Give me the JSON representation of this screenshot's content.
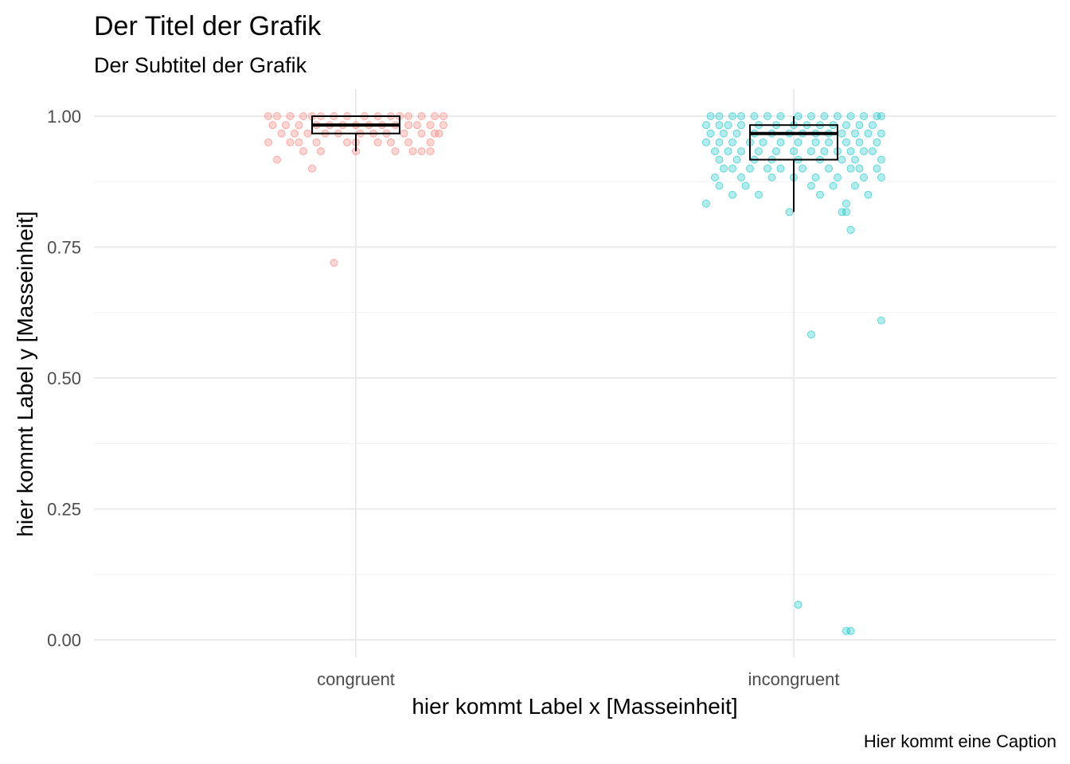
{
  "chart_data": {
    "type": "boxplot+jitter",
    "title": "Der Titel der Grafik",
    "subtitle": "Der Subtitel der Grafik",
    "xlabel": "hier kommt Label x [Masseinheit]",
    "ylabel": "hier kommt Label y [Masseinheit]",
    "caption": "Hier kommt eine Caption",
    "ylim": [
      0,
      1.05
    ],
    "yticks": [
      "0.00",
      "0.25",
      "0.50",
      "0.75",
      "1.00"
    ],
    "ytick_values": [
      0,
      0.25,
      0.5,
      0.75,
      1.0
    ],
    "grid": true,
    "legend": "none",
    "categories": [
      "congruent",
      "incongruent"
    ],
    "colors": {
      "congruent": "#F8766D",
      "incongruent": "#00BFC4"
    },
    "boxes": [
      {
        "category": "congruent",
        "whisker_low": 0.933,
        "q1": 0.967,
        "median": 0.983,
        "q3": 1.0,
        "whisker_high": 1.0
      },
      {
        "category": "incongruent",
        "whisker_low": 0.817,
        "q1": 0.917,
        "median": 0.967,
        "q3": 0.983,
        "whisker_high": 1.0
      }
    ],
    "points": {
      "congruent": [
        [
          -0.2,
          1.0
        ],
        [
          -0.18,
          1.0
        ],
        [
          -0.15,
          1.0
        ],
        [
          -0.12,
          1.0
        ],
        [
          -0.1,
          1.0
        ],
        [
          -0.08,
          1.0
        ],
        [
          -0.05,
          1.0
        ],
        [
          -0.02,
          1.0
        ],
        [
          0.02,
          1.0
        ],
        [
          0.05,
          1.0
        ],
        [
          0.08,
          1.0
        ],
        [
          0.1,
          1.0
        ],
        [
          0.12,
          1.0
        ],
        [
          0.15,
          1.0
        ],
        [
          0.18,
          1.0
        ],
        [
          0.2,
          1.0
        ],
        [
          -0.19,
          0.983
        ],
        [
          -0.16,
          0.983
        ],
        [
          -0.13,
          0.983
        ],
        [
          -0.09,
          0.983
        ],
        [
          -0.06,
          0.983
        ],
        [
          -0.03,
          0.983
        ],
        [
          0.0,
          0.983
        ],
        [
          0.03,
          0.983
        ],
        [
          0.06,
          0.983
        ],
        [
          0.09,
          0.983
        ],
        [
          0.12,
          0.983
        ],
        [
          0.14,
          0.983
        ],
        [
          0.17,
          0.983
        ],
        [
          0.2,
          0.983
        ],
        [
          -0.17,
          0.967
        ],
        [
          -0.14,
          0.967
        ],
        [
          -0.11,
          0.967
        ],
        [
          -0.07,
          0.967
        ],
        [
          -0.04,
          0.967
        ],
        [
          0.01,
          0.967
        ],
        [
          0.04,
          0.967
        ],
        [
          0.07,
          0.967
        ],
        [
          0.11,
          0.967
        ],
        [
          0.15,
          0.967
        ],
        [
          0.18,
          0.967
        ],
        [
          0.19,
          0.967
        ],
        [
          -0.2,
          0.95
        ],
        [
          -0.15,
          0.95
        ],
        [
          -0.13,
          0.95
        ],
        [
          -0.09,
          0.95
        ],
        [
          -0.02,
          0.95
        ],
        [
          0.0,
          0.95
        ],
        [
          0.05,
          0.95
        ],
        [
          0.08,
          0.95
        ],
        [
          0.12,
          0.95
        ],
        [
          0.17,
          0.95
        ],
        [
          -0.12,
          0.933
        ],
        [
          -0.08,
          0.933
        ],
        [
          0.0,
          0.933
        ],
        [
          0.09,
          0.933
        ],
        [
          0.13,
          0.933
        ],
        [
          0.15,
          0.933
        ],
        [
          0.17,
          0.933
        ],
        [
          -0.18,
          0.917
        ],
        [
          -0.1,
          0.9
        ],
        [
          -0.05,
          0.72
        ]
      ],
      "incongruent": [
        [
          -0.19,
          1.0
        ],
        [
          -0.17,
          1.0
        ],
        [
          -0.14,
          1.0
        ],
        [
          -0.12,
          1.0
        ],
        [
          -0.09,
          1.0
        ],
        [
          -0.06,
          1.0
        ],
        [
          -0.03,
          1.0
        ],
        [
          0.01,
          1.0
        ],
        [
          0.04,
          1.0
        ],
        [
          0.07,
          1.0
        ],
        [
          0.1,
          1.0
        ],
        [
          0.13,
          1.0
        ],
        [
          0.16,
          1.0
        ],
        [
          0.19,
          1.0
        ],
        [
          0.2,
          1.0
        ],
        [
          -0.2,
          0.983
        ],
        [
          -0.17,
          0.983
        ],
        [
          -0.15,
          0.983
        ],
        [
          -0.12,
          0.983
        ],
        [
          -0.08,
          0.983
        ],
        [
          -0.04,
          0.983
        ],
        [
          0.0,
          0.983
        ],
        [
          0.03,
          0.983
        ],
        [
          0.06,
          0.983
        ],
        [
          0.09,
          0.983
        ],
        [
          0.12,
          0.983
        ],
        [
          0.15,
          0.983
        ],
        [
          0.18,
          0.983
        ],
        [
          -0.19,
          0.967
        ],
        [
          -0.16,
          0.967
        ],
        [
          -0.13,
          0.967
        ],
        [
          -0.09,
          0.967
        ],
        [
          -0.05,
          0.967
        ],
        [
          -0.01,
          0.967
        ],
        [
          0.02,
          0.967
        ],
        [
          0.05,
          0.967
        ],
        [
          0.08,
          0.967
        ],
        [
          0.11,
          0.967
        ],
        [
          0.14,
          0.967
        ],
        [
          0.17,
          0.967
        ],
        [
          0.2,
          0.967
        ],
        [
          -0.2,
          0.95
        ],
        [
          -0.17,
          0.95
        ],
        [
          -0.14,
          0.95
        ],
        [
          -0.1,
          0.95
        ],
        [
          -0.07,
          0.95
        ],
        [
          -0.03,
          0.95
        ],
        [
          0.01,
          0.95
        ],
        [
          0.05,
          0.95
        ],
        [
          0.08,
          0.95
        ],
        [
          0.12,
          0.95
        ],
        [
          0.15,
          0.95
        ],
        [
          0.19,
          0.95
        ],
        [
          -0.18,
          0.933
        ],
        [
          -0.15,
          0.933
        ],
        [
          -0.12,
          0.933
        ],
        [
          -0.08,
          0.933
        ],
        [
          -0.04,
          0.933
        ],
        [
          0.0,
          0.933
        ],
        [
          0.04,
          0.933
        ],
        [
          0.07,
          0.933
        ],
        [
          0.1,
          0.933
        ],
        [
          0.13,
          0.933
        ],
        [
          0.16,
          0.933
        ],
        [
          0.18,
          0.933
        ],
        [
          -0.17,
          0.917
        ],
        [
          -0.13,
          0.917
        ],
        [
          -0.09,
          0.917
        ],
        [
          -0.05,
          0.917
        ],
        [
          0.01,
          0.917
        ],
        [
          0.06,
          0.917
        ],
        [
          0.11,
          0.917
        ],
        [
          0.14,
          0.917
        ],
        [
          0.2,
          0.917
        ],
        [
          -0.16,
          0.9
        ],
        [
          -0.14,
          0.9
        ],
        [
          -0.1,
          0.9
        ],
        [
          -0.06,
          0.9
        ],
        [
          -0.03,
          0.9
        ],
        [
          0.02,
          0.9
        ],
        [
          0.08,
          0.9
        ],
        [
          0.13,
          0.9
        ],
        [
          0.15,
          0.9
        ],
        [
          0.19,
          0.9
        ],
        [
          -0.18,
          0.883
        ],
        [
          -0.12,
          0.883
        ],
        [
          -0.05,
          0.883
        ],
        [
          0.0,
          0.883
        ],
        [
          0.05,
          0.883
        ],
        [
          0.1,
          0.883
        ],
        [
          0.16,
          0.883
        ],
        [
          0.2,
          0.883
        ],
        [
          -0.17,
          0.867
        ],
        [
          -0.11,
          0.867
        ],
        [
          0.04,
          0.867
        ],
        [
          0.09,
          0.867
        ],
        [
          0.14,
          0.867
        ],
        [
          -0.14,
          0.85
        ],
        [
          -0.08,
          0.85
        ],
        [
          0.06,
          0.85
        ],
        [
          0.17,
          0.85
        ],
        [
          -0.2,
          0.833
        ],
        [
          0.12,
          0.833
        ],
        [
          0.11,
          0.817
        ],
        [
          0.12,
          0.817
        ],
        [
          -0.01,
          0.817
        ],
        [
          0.13,
          0.783
        ],
        [
          0.2,
          0.61
        ],
        [
          0.04,
          0.583
        ],
        [
          0.01,
          0.067
        ],
        [
          0.12,
          0.017
        ],
        [
          0.13,
          0.017
        ]
      ]
    }
  }
}
